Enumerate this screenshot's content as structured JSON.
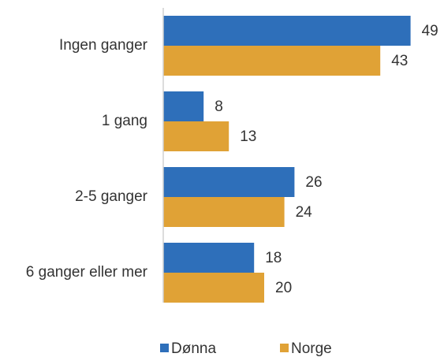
{
  "chart_data": {
    "type": "bar",
    "orientation": "horizontal",
    "categories": [
      "Ingen ganger",
      "1 gang",
      "2-5 ganger",
      "6 ganger eller mer"
    ],
    "series": [
      {
        "name": "Dønna",
        "color": "#2e6fba",
        "values": [
          49,
          8,
          26,
          18
        ]
      },
      {
        "name": "Norge",
        "color": "#e0a236",
        "values": [
          43,
          13,
          24,
          20
        ]
      }
    ],
    "xlim": [
      0,
      50
    ],
    "legend": "bottom"
  }
}
